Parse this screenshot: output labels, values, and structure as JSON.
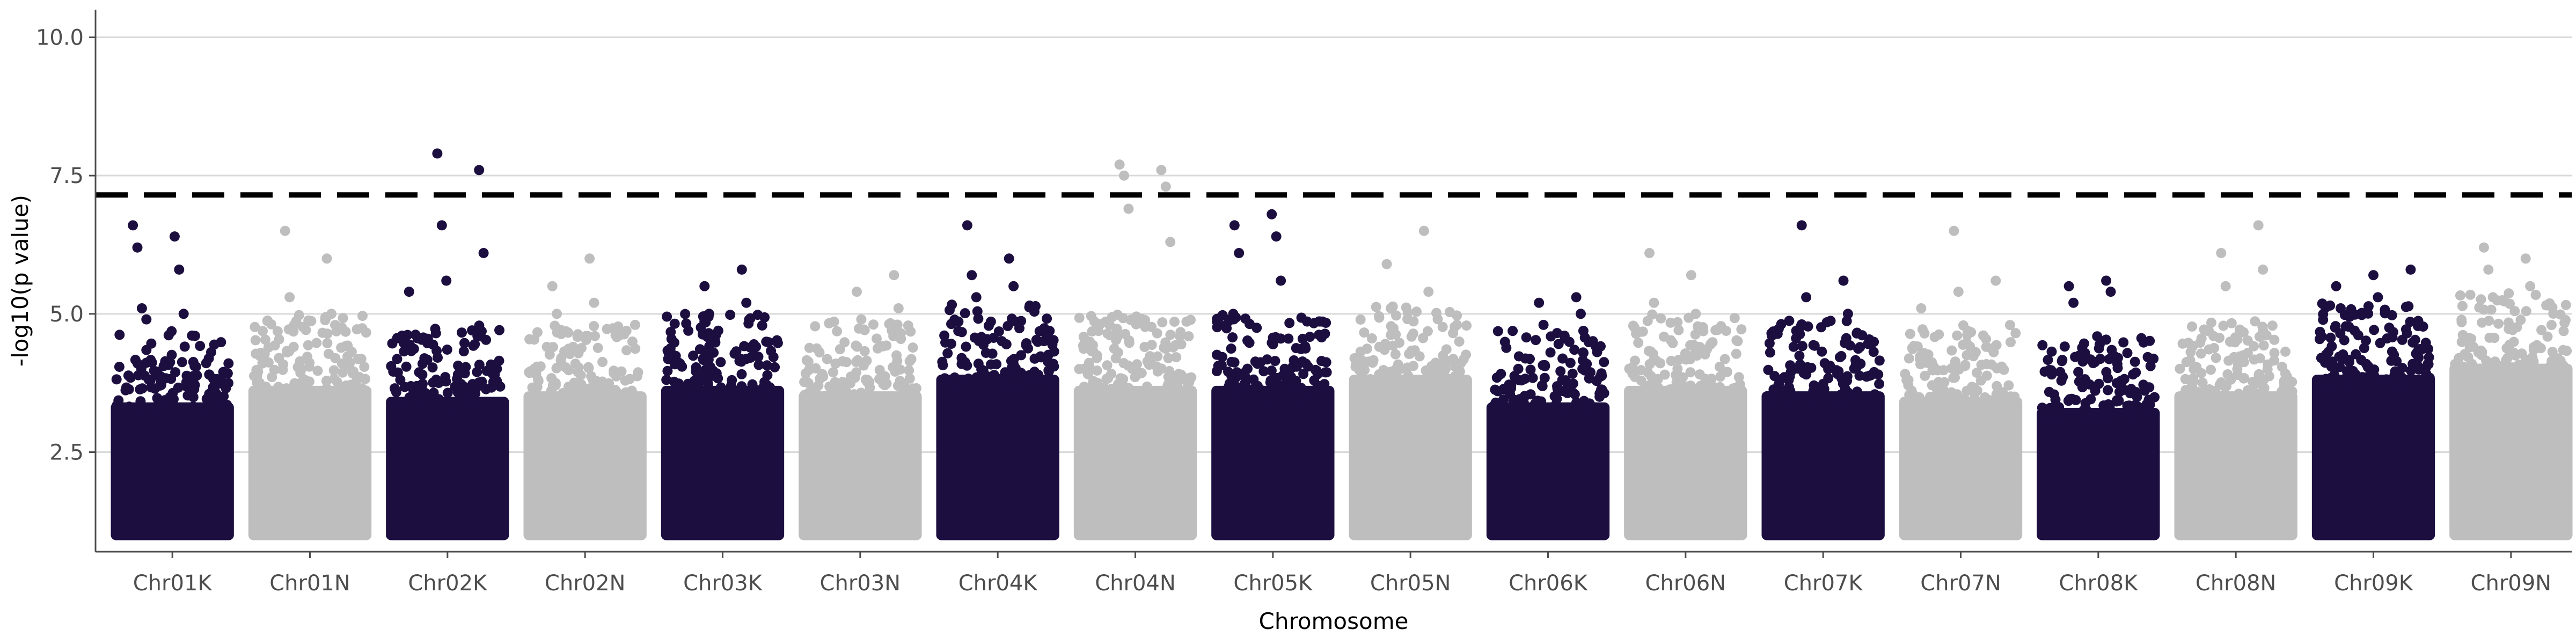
{
  "chart_data": {
    "type": "scatter",
    "xlabel": "Chromosome",
    "ylabel": "-log10(p value)",
    "ylim": [
      0.7,
      10.5
    ],
    "yticks": [
      2.5,
      5.0,
      7.5,
      10.0
    ],
    "ytick_labels": [
      "2.5",
      "5.0",
      "7.5",
      "10.0"
    ],
    "grid": "horizontal major gridlines",
    "threshold": 7.15,
    "colors": {
      "K": "#1c0f40",
      "N": "#bebebe",
      "threshold": "#000000",
      "grid": "#d9d9d9",
      "axis": "#4d4d4d"
    },
    "categories": [
      "Chr01K",
      "Chr01N",
      "Chr02K",
      "Chr02N",
      "Chr03K",
      "Chr03N",
      "Chr04K",
      "Chr04N",
      "Chr05K",
      "Chr05N",
      "Chr06K",
      "Chr06N",
      "Chr07K",
      "Chr07N",
      "Chr08K",
      "Chr08N",
      "Chr09K",
      "Chr09N"
    ],
    "series": [
      {
        "chrom": "Chr01K",
        "top_values": [
          6.6,
          6.4,
          6.2,
          5.8,
          5.1,
          5.0,
          4.9
        ]
      },
      {
        "chrom": "Chr01N",
        "top_values": [
          6.5,
          6.0,
          5.3,
          5.0,
          4.8
        ]
      },
      {
        "chrom": "Chr02K",
        "top_values": [
          7.9,
          7.6,
          6.6,
          6.1,
          5.6,
          5.4
        ]
      },
      {
        "chrom": "Chr02N",
        "top_values": [
          6.0,
          5.5,
          5.2,
          5.0
        ]
      },
      {
        "chrom": "Chr03K",
        "top_values": [
          5.8,
          5.5,
          5.2,
          5.0
        ]
      },
      {
        "chrom": "Chr03N",
        "top_values": [
          5.7,
          5.4,
          5.1,
          4.9
        ]
      },
      {
        "chrom": "Chr04K",
        "top_values": [
          6.6,
          6.0,
          5.7,
          5.5,
          5.3
        ]
      },
      {
        "chrom": "Chr04N",
        "top_values": [
          7.7,
          7.6,
          7.5,
          7.3,
          6.9,
          6.3
        ]
      },
      {
        "chrom": "Chr05K",
        "top_values": [
          6.8,
          6.6,
          6.4,
          6.1,
          5.6
        ]
      },
      {
        "chrom": "Chr05N",
        "top_values": [
          6.5,
          5.9,
          5.4,
          5.1
        ]
      },
      {
        "chrom": "Chr06K",
        "top_values": [
          5.3,
          5.2,
          5.0,
          4.8
        ]
      },
      {
        "chrom": "Chr06N",
        "top_values": [
          6.1,
          5.7,
          5.2,
          5.0
        ]
      },
      {
        "chrom": "Chr07K",
        "top_values": [
          6.6,
          5.6,
          5.3,
          5.0
        ]
      },
      {
        "chrom": "Chr07N",
        "top_values": [
          6.5,
          5.6,
          5.4,
          5.1
        ]
      },
      {
        "chrom": "Chr08K",
        "top_values": [
          5.6,
          5.5,
          5.4,
          5.2
        ]
      },
      {
        "chrom": "Chr08N",
        "top_values": [
          6.6,
          6.1,
          5.8,
          5.5
        ]
      },
      {
        "chrom": "Chr09K",
        "top_values": [
          5.8,
          5.7,
          5.5,
          5.3,
          5.1
        ]
      },
      {
        "chrom": "Chr09N",
        "top_values": [
          6.2,
          6.0,
          5.8,
          5.5,
          5.3
        ]
      }
    ],
    "floor_value": 1.0,
    "dense_ceiling": [
      3.8,
      4.1,
      3.9,
      4.0,
      4.1,
      4.0,
      4.3,
      4.1,
      4.1,
      4.3,
      3.8,
      4.1,
      4.0,
      3.9,
      3.7,
      4.0,
      4.3,
      4.5
    ]
  }
}
